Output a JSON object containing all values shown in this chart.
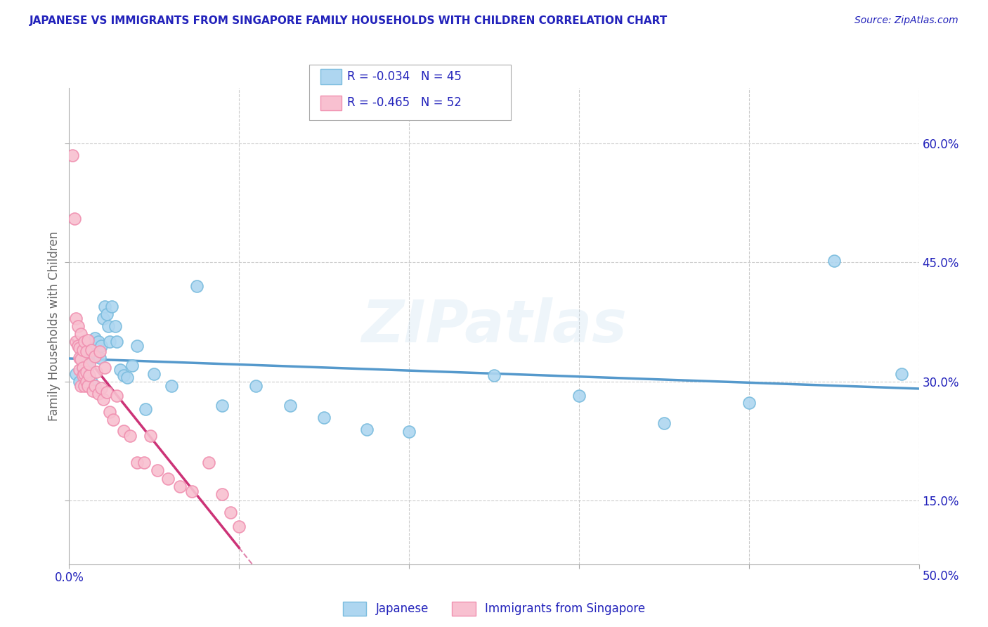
{
  "title": "JAPANESE VS IMMIGRANTS FROM SINGAPORE FAMILY HOUSEHOLDS WITH CHILDREN CORRELATION CHART",
  "source": "Source: ZipAtlas.com",
  "ylabel": "Family Households with Children",
  "watermark": "ZIPatlas",
  "xlim": [
    0.0,
    0.5
  ],
  "ylim": [
    0.07,
    0.67
  ],
  "color_japanese": "#7abcde",
  "color_singapore": "#f090b0",
  "color_japanese_fill": "#aed6f0",
  "color_singapore_fill": "#f8c0d0",
  "color_title": "#2222bb",
  "color_source": "#2222bb",
  "color_legend_text": "#2222bb",
  "color_trendline_japanese": "#5599cc",
  "color_trendline_singapore": "#cc3377",
  "grid_color": "#cccccc",
  "japanese_x": [
    0.004,
    0.006,
    0.007,
    0.008,
    0.009,
    0.009,
    0.01,
    0.011,
    0.012,
    0.013,
    0.014,
    0.015,
    0.016,
    0.017,
    0.018,
    0.019,
    0.02,
    0.021,
    0.022,
    0.023,
    0.024,
    0.025,
    0.027,
    0.028,
    0.03,
    0.032,
    0.034,
    0.037,
    0.04,
    0.045,
    0.05,
    0.06,
    0.075,
    0.09,
    0.11,
    0.13,
    0.15,
    0.175,
    0.2,
    0.25,
    0.3,
    0.35,
    0.4,
    0.45,
    0.49
  ],
  "japanese_y": [
    0.31,
    0.3,
    0.33,
    0.32,
    0.315,
    0.305,
    0.32,
    0.318,
    0.325,
    0.3,
    0.342,
    0.355,
    0.335,
    0.35,
    0.33,
    0.345,
    0.38,
    0.395,
    0.385,
    0.37,
    0.35,
    0.395,
    0.37,
    0.35,
    0.315,
    0.308,
    0.305,
    0.32,
    0.345,
    0.265,
    0.31,
    0.295,
    0.42,
    0.27,
    0.295,
    0.27,
    0.255,
    0.24,
    0.237,
    0.308,
    0.282,
    0.248,
    0.273,
    0.452,
    0.31
  ],
  "singapore_x": [
    0.002,
    0.003,
    0.004,
    0.004,
    0.005,
    0.005,
    0.006,
    0.006,
    0.006,
    0.007,
    0.007,
    0.007,
    0.008,
    0.008,
    0.008,
    0.009,
    0.009,
    0.009,
    0.01,
    0.01,
    0.01,
    0.011,
    0.011,
    0.012,
    0.012,
    0.013,
    0.014,
    0.015,
    0.015,
    0.016,
    0.017,
    0.018,
    0.019,
    0.02,
    0.021,
    0.022,
    0.024,
    0.026,
    0.028,
    0.032,
    0.036,
    0.04,
    0.044,
    0.048,
    0.052,
    0.058,
    0.065,
    0.072,
    0.082,
    0.09,
    0.095,
    0.1
  ],
  "singapore_y": [
    0.585,
    0.505,
    0.35,
    0.38,
    0.345,
    0.37,
    0.315,
    0.342,
    0.33,
    0.328,
    0.295,
    0.36,
    0.318,
    0.34,
    0.308,
    0.295,
    0.35,
    0.31,
    0.3,
    0.312,
    0.338,
    0.295,
    0.352,
    0.308,
    0.322,
    0.34,
    0.288,
    0.295,
    0.332,
    0.312,
    0.285,
    0.338,
    0.292,
    0.278,
    0.318,
    0.287,
    0.262,
    0.252,
    0.282,
    0.238,
    0.232,
    0.198,
    0.198,
    0.232,
    0.188,
    0.178,
    0.168,
    0.162,
    0.198,
    0.158,
    0.135,
    0.118
  ]
}
